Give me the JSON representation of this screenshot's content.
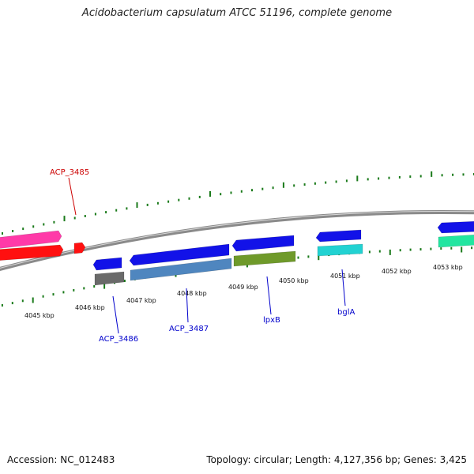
{
  "title": "Acidobacterium capsulatum ATCC 51196, complete genome",
  "footer": {
    "accession": "Accession: NC_012483",
    "summary": "Topology: circular; Length: 4,127,356 bp; Genes: 3,425"
  },
  "scale_labels": [
    "4045 kbp",
    "4046 kbp",
    "4047 kbp",
    "4048 kbp",
    "4049 kbp",
    "4050 kbp",
    "4051 kbp",
    "4052 kbp",
    "4053 kbp"
  ],
  "genes": [
    {
      "label": "ACP_3485",
      "color": "#cc0000"
    },
    {
      "label": "ACP_3486",
      "color": "#0000cc"
    },
    {
      "label": "ACP_3487",
      "color": "#0000cc"
    },
    {
      "label": "lpxB",
      "color": "#0000cc"
    },
    {
      "label": "bglA",
      "color": "#0000cc"
    }
  ],
  "colors": {
    "backbone": "#8a8a8a",
    "tick": "#1a7a1a",
    "magenta": "#ff3aa8",
    "red": "#ff1010",
    "blue": "#1212e8",
    "gray": "#6a6a6a",
    "steelblue": "#4f86bf",
    "olive": "#6f9a2a",
    "cyan": "#22d2d2",
    "springgreen": "#22e6a0"
  }
}
